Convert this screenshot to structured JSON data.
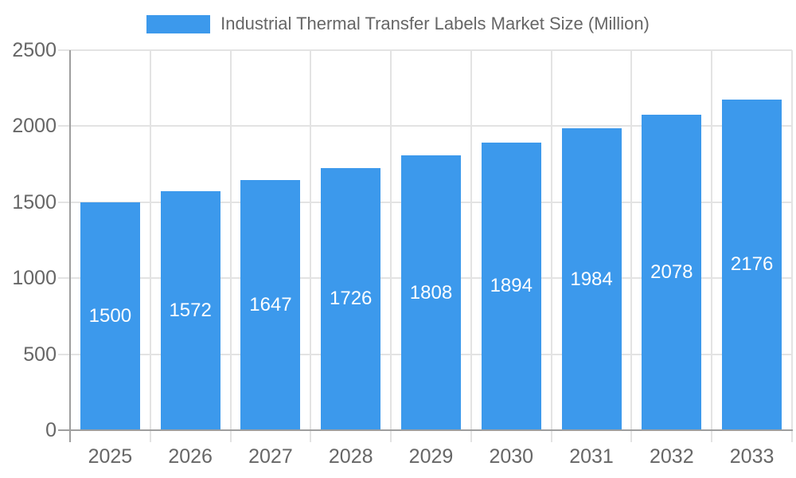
{
  "legend": {
    "label": "Industrial Thermal Transfer Labels Market Size (Million)"
  },
  "chart_data": {
    "type": "bar",
    "title": "Industrial Thermal Transfer Labels Market Size (Million)",
    "categories": [
      "2025",
      "2026",
      "2027",
      "2028",
      "2029",
      "2030",
      "2031",
      "2032",
      "2033"
    ],
    "values": [
      1500,
      1572,
      1647,
      1726,
      1808,
      1894,
      1984,
      2078,
      2176
    ],
    "xlabel": "",
    "ylabel": "",
    "ylim": [
      0,
      2500
    ],
    "yticks": [
      0,
      500,
      1000,
      1500,
      2000,
      2500
    ],
    "grid": true,
    "legend_position": "top",
    "value_labels": "inside-center",
    "colors": {
      "bar": "#3c99ec",
      "grid": "#e3e3e3",
      "axis": "#9e9e9e",
      "text": "#666666",
      "value_label": "#ffffff"
    }
  }
}
